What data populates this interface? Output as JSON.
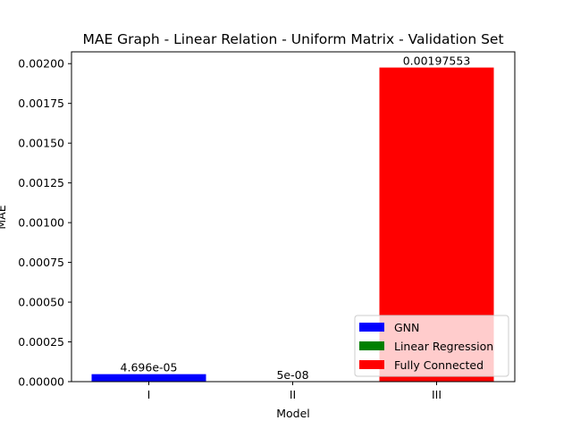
{
  "chart_data": {
    "type": "bar",
    "title": "MAE Graph - Linear Relation - Uniform Matrix - Validation Set",
    "xlabel": "Model",
    "ylabel": "MAE",
    "categories": [
      "I",
      "II",
      "III"
    ],
    "values": [
      4.696e-05,
      5e-08,
      0.00197553
    ],
    "data_labels": [
      "4.696e-05",
      "5e-08",
      "0.00197553"
    ],
    "ylim": [
      0,
      0.00207431
    ],
    "yticks": [
      0,
      0.00025,
      0.0005,
      0.00075,
      0.001,
      0.00125,
      0.0015,
      0.00175,
      0.002
    ],
    "ytick_labels": [
      "0.00000",
      "0.00025",
      "0.00050",
      "0.00075",
      "0.00100",
      "0.00125",
      "0.00150",
      "0.00175",
      "0.00200"
    ],
    "grid": false,
    "legend_position": "lower-right",
    "series": [
      {
        "name": "GNN",
        "color": "#0000ff"
      },
      {
        "name": "Linear Regression",
        "color": "#008000"
      },
      {
        "name": "Fully Connected",
        "color": "#ff0000"
      }
    ]
  }
}
